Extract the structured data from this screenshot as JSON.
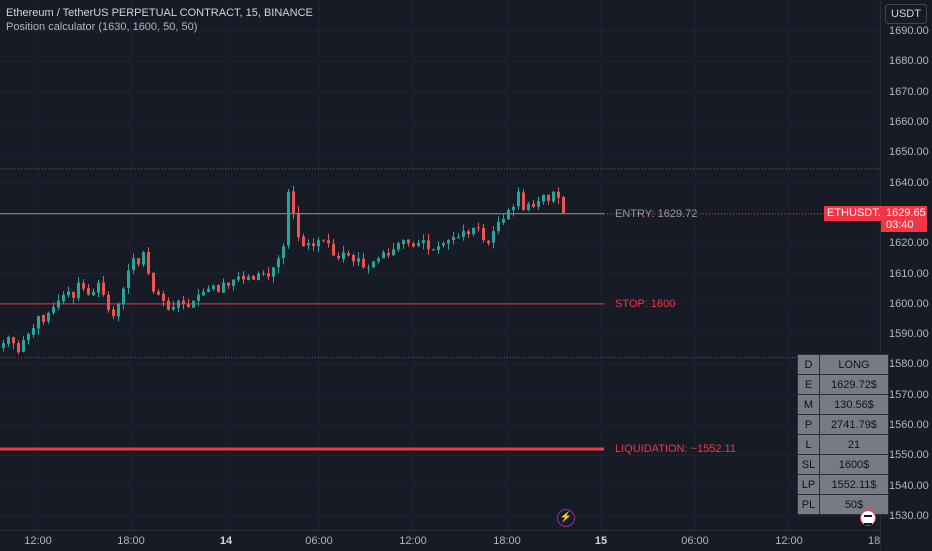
{
  "header": {
    "title": "Ethereum / TetherUS PERPETUAL CONTRACT, 15, BINANCE",
    "subtitle": "Position calculator (1630, 1600, 50, 50)",
    "currency": "USDT"
  },
  "levels": {
    "entry": {
      "label": "ENTRY: 1629.72",
      "price": 1629.72,
      "color": "#9598a1"
    },
    "stop": {
      "label": "STOP: 1600",
      "price": 1600,
      "color": "#f23645"
    },
    "liquidation": {
      "label": "LIQUIDATION: ~1552.11",
      "price": 1552.11,
      "color": "#f23645"
    },
    "high_dotted": 1644.5,
    "low_dotted": 1582.3
  },
  "last_price": {
    "symbol": "ETHUSDT.P",
    "price": "1629.65",
    "countdown": "03:40",
    "value": 1629.65
  },
  "position_table": [
    {
      "key": "D",
      "value": "LONG"
    },
    {
      "key": "E",
      "value": "1629.72$"
    },
    {
      "key": "M",
      "value": "130.56$"
    },
    {
      "key": "P",
      "value": "2741.79$"
    },
    {
      "key": "L",
      "value": "21"
    },
    {
      "key": "SL",
      "value": "1600$"
    },
    {
      "key": "LP",
      "value": "1552.11$"
    },
    {
      "key": "PL",
      "value": "50$"
    }
  ],
  "icons": {
    "flash": "flash-icon",
    "logo": "tradingview-logo-icon"
  },
  "chart_data": {
    "type": "candlestick",
    "ylim": [
      1525,
      1695
    ],
    "y_ticks": [
      "1690.00",
      "1680.00",
      "1670.00",
      "1660.00",
      "1650.00",
      "1640.00",
      "1620.00",
      "1610.00",
      "1600.00",
      "1590.00",
      "1580.00",
      "1570.00",
      "1560.00",
      "1550.00",
      "1540.00",
      "1530.00"
    ],
    "y_tick_values": [
      1690,
      1680,
      1670,
      1660,
      1650,
      1640,
      1620,
      1610,
      1600,
      1590,
      1580,
      1570,
      1560,
      1550,
      1540,
      1530
    ],
    "x_ticks": [
      "12:00",
      "18:00",
      "14",
      "06:00",
      "12:00",
      "18:00",
      "15",
      "06:00",
      "12:00",
      "18"
    ],
    "x_tick_bold": [
      false,
      false,
      true,
      false,
      false,
      false,
      true,
      false,
      false,
      false
    ],
    "candle_count": 113,
    "candle_interval": "15m",
    "colors": {
      "up": "#26a69a",
      "down": "#ef5350"
    },
    "closes": [
      1587,
      1589,
      1587,
      1584,
      1588,
      1590,
      1592,
      1596,
      1594,
      1597,
      1599,
      1601,
      1603,
      1604,
      1602,
      1607,
      1605,
      1603,
      1604,
      1607,
      1603,
      1598,
      1596,
      1600,
      1605,
      1611,
      1615,
      1613,
      1617,
      1610,
      1604,
      1603,
      1601,
      1598,
      1599,
      1601,
      1600,
      1599,
      1601,
      1603,
      1604,
      1605,
      1606,
      1604,
      1607,
      1606,
      1608,
      1609,
      1608,
      1609,
      1608,
      1610,
      1610,
      1609,
      1612,
      1615,
      1619,
      1637,
      1630,
      1622,
      1619,
      1620,
      1619,
      1621,
      1621,
      1620,
      1616,
      1615,
      1617,
      1616,
      1614,
      1615,
      1612,
      1612,
      1614,
      1615,
      1617,
      1616,
      1618,
      1620,
      1621,
      1620,
      1619,
      1620,
      1621,
      1618,
      1618,
      1619,
      1620,
      1621,
      1622,
      1622,
      1624,
      1623,
      1625,
      1625,
      1621,
      1620,
      1624,
      1627,
      1628,
      1631,
      1632,
      1637,
      1631,
      1633,
      1632,
      1634,
      1636,
      1634,
      1637,
      1635,
      1630
    ]
  }
}
